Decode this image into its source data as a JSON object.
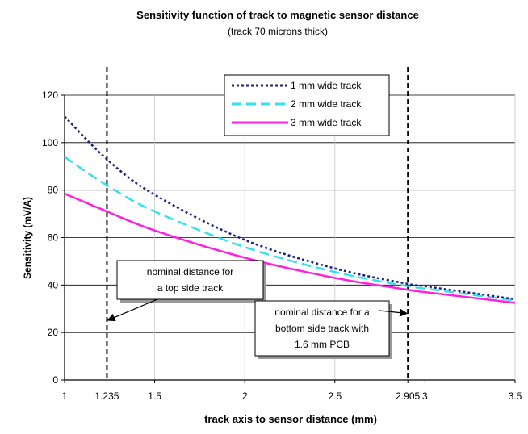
{
  "chart_data": {
    "type": "line",
    "title": "Sensitivity function of track to magnetic sensor distance",
    "subtitle": "(track 70 microns thick)",
    "xlabel": "track axis to sensor distance (mm)",
    "ylabel": "Sensitivity (mV/A)",
    "xlim": [
      1,
      3.5
    ],
    "ylim": [
      0,
      120
    ],
    "x_ticks": [
      1,
      1.235,
      1.5,
      2,
      2.5,
      2.905,
      3,
      3.5
    ],
    "x_tick_labels": [
      "1",
      "1.235",
      "1.5",
      "2",
      "2.5",
      "2.905",
      "3",
      "3.5"
    ],
    "y_ticks": [
      0,
      20,
      40,
      60,
      80,
      100,
      120
    ],
    "y_tick_labels": [
      "0",
      "20",
      "40",
      "60",
      "80",
      "100",
      "120"
    ],
    "grid": true,
    "legend_position": "top-right",
    "series": [
      {
        "name": "1 mm wide track",
        "color": "#1f1f7a",
        "style": "dotted",
        "x": [
          1.0,
          1.235,
          1.5,
          2.0,
          2.5,
          2.905,
          3.0,
          3.5
        ],
        "y": [
          111,
          93,
          78,
          59,
          47,
          40.5,
          39.5,
          34
        ]
      },
      {
        "name": "2 mm wide track",
        "color": "#33e0f0",
        "style": "dashed",
        "x": [
          1.0,
          1.235,
          1.5,
          2.0,
          2.5,
          2.905,
          3.0,
          3.5
        ],
        "y": [
          94,
          82,
          71,
          56,
          45.5,
          39.5,
          38.5,
          33.5
        ]
      },
      {
        "name": "3 mm wide track",
        "color": "#ff22dd",
        "style": "solid",
        "x": [
          1.0,
          1.235,
          1.5,
          2.0,
          2.5,
          2.905,
          3.0,
          3.5
        ],
        "y": [
          78.5,
          71,
          63,
          51.5,
          43,
          38,
          37,
          32.5
        ]
      }
    ],
    "reference_lines": [
      {
        "x": 1.235,
        "style": "dashed",
        "color": "#000000"
      },
      {
        "x": 2.905,
        "style": "dashed",
        "color": "#000000"
      }
    ],
    "annotations": [
      {
        "lines": [
          "nominal distance for",
          "a top side track"
        ],
        "target_x": 1.235,
        "target_y": 25
      },
      {
        "lines": [
          "nominal distance for a",
          "bottom side track with",
          "1.6 mm PCB"
        ],
        "target_x": 2.905,
        "target_y": 28
      }
    ]
  }
}
